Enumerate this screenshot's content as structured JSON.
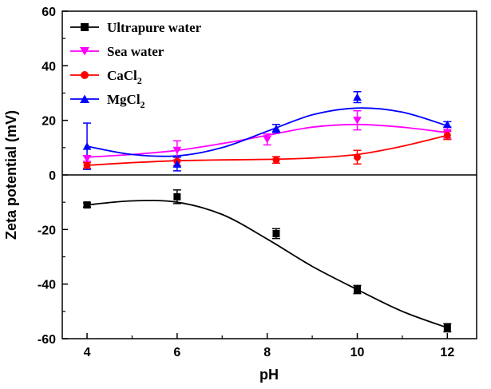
{
  "chart_data": {
    "type": "scatter",
    "xlabel": "pH",
    "ylabel": "Zeta potential (mV)",
    "xlim": [
      3.45,
      12.65
    ],
    "ylim": [
      -60,
      60
    ],
    "xticks": [
      4,
      6,
      8,
      10,
      12
    ],
    "yticks": [
      -60,
      -40,
      -20,
      0,
      20,
      40,
      60
    ],
    "xtick_labels": [
      "4",
      "6",
      "8",
      "10",
      "12"
    ],
    "ytick_labels": [
      "-60",
      "-40",
      "-20",
      "0",
      "20",
      "40",
      "60"
    ],
    "zero_line": true,
    "legend_position": "top-left",
    "series": [
      {
        "name": "Ultrapure water",
        "name_main": "Ultrapure water",
        "name_sub": "",
        "color": "#000000",
        "marker": "square",
        "x": [
          4,
          6,
          8.2,
          10,
          12
        ],
        "y": [
          -11,
          -8,
          -21.5,
          -42,
          -56
        ],
        "err": [
          0.8,
          2.5,
          1.8,
          1.5,
          1.5
        ],
        "curve_x": [
          4,
          5,
          6,
          7,
          8,
          9,
          10,
          11,
          12
        ],
        "curve_y": [
          -11,
          -9.5,
          -10,
          -14.5,
          -23.5,
          -33.5,
          -42,
          -50,
          -56
        ]
      },
      {
        "name": "Sea water",
        "name_main": "Sea water",
        "name_sub": "",
        "color": "#ff00ff",
        "marker": "triangle-down",
        "x": [
          4,
          6,
          8,
          10,
          12
        ],
        "y": [
          6,
          9,
          13,
          20,
          15.5
        ],
        "err": [
          1,
          3.5,
          2,
          3.5,
          2
        ],
        "curve_x": [
          4,
          5,
          6,
          7,
          8,
          9,
          10,
          11,
          12
        ],
        "curve_y": [
          6.5,
          7.5,
          9,
          11.5,
          14.5,
          17.5,
          18.5,
          17.5,
          15.5
        ]
      },
      {
        "name": "CaCl2",
        "name_main": "CaCl",
        "name_sub": "2",
        "color": "#ff0000",
        "marker": "circle",
        "x": [
          4,
          6,
          8.2,
          10,
          12
        ],
        "y": [
          3.5,
          5,
          5.5,
          6.5,
          14.5
        ],
        "err": [
          1,
          1.5,
          1.2,
          2.5,
          1.5
        ],
        "curve_x": [
          4,
          5,
          6,
          7,
          8,
          9,
          10,
          11,
          12
        ],
        "curve_y": [
          3.5,
          4.5,
          5.2,
          5.5,
          5.7,
          6.2,
          7.5,
          10.5,
          14.5
        ]
      },
      {
        "name": "MgCl2",
        "name_main": "MgCl",
        "name_sub": "2",
        "color": "#0000ff",
        "marker": "triangle-up",
        "x": [
          4,
          6,
          8.2,
          10,
          12
        ],
        "y": [
          10.5,
          4,
          17,
          28.5,
          18.5
        ],
        "err": [
          8.5,
          2.5,
          1.5,
          2,
          1
        ],
        "curve_x": [
          4,
          5,
          6,
          7,
          8,
          9,
          10,
          11,
          12
        ],
        "curve_y": [
          10.5,
          7.5,
          7,
          10,
          16,
          22,
          24.5,
          23,
          18
        ]
      }
    ]
  }
}
